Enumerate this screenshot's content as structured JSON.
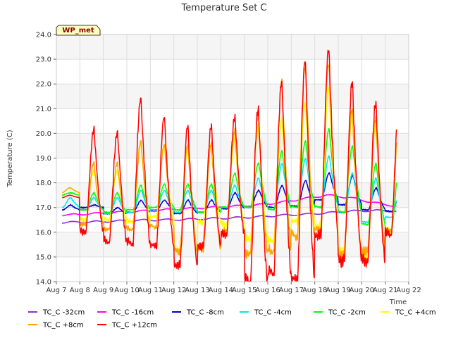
{
  "chart_data": {
    "type": "line",
    "title": "Temperature Set C",
    "xlabel": "Time",
    "ylabel": "Temperature (C)",
    "badge": "WP_met",
    "x_ticks": [
      "Aug 7",
      "Aug 8",
      "Aug 9",
      "Aug 10",
      "Aug 11",
      "Aug 12",
      "Aug 13",
      "Aug 14",
      "Aug 15",
      "Aug 16",
      "Aug 17",
      "Aug 18",
      "Aug 19",
      "Aug 20",
      "Aug 21",
      "Aug 22"
    ],
    "xlim": [
      "Aug 7",
      "Aug 22"
    ],
    "ylim": [
      14.0,
      24.0
    ],
    "y_ticks": [
      "14.0",
      "15.0",
      "16.0",
      "17.0",
      "18.0",
      "19.0",
      "20.0",
      "21.0",
      "22.0",
      "23.0",
      "24.0"
    ],
    "grid": true,
    "legend_position": "bottom",
    "series": [
      {
        "name": "TC_C -32cm",
        "color": "#8a2be2",
        "description": "slow rise from about 16.4 to about 16.9 with small daily ripple",
        "points": [
          [
            "Aug 7 12:00",
            16.4
          ],
          [
            "Aug 8 12:00",
            16.42
          ],
          [
            "Aug 9 12:00",
            16.45
          ],
          [
            "Aug 10 12:00",
            16.48
          ],
          [
            "Aug 11 12:00",
            16.5
          ],
          [
            "Aug 12 12:00",
            16.52
          ],
          [
            "Aug 13 12:00",
            16.55
          ],
          [
            "Aug 14 12:00",
            16.58
          ],
          [
            "Aug 15 12:00",
            16.62
          ],
          [
            "Aug 16 12:00",
            16.68
          ],
          [
            "Aug 17 12:00",
            16.72
          ],
          [
            "Aug 18 12:00",
            16.78
          ],
          [
            "Aug 19 12:00",
            16.85
          ],
          [
            "Aug 20 12:00",
            16.88
          ],
          [
            "Aug 21 12:00",
            16.85
          ]
        ]
      },
      {
        "name": "TC_C -16cm",
        "color": "#ff00ff",
        "points": [
          [
            "Aug 7 12:00",
            16.7
          ],
          [
            "Aug 8 12:00",
            16.75
          ],
          [
            "Aug 9 12:00",
            16.8
          ],
          [
            "Aug 10 12:00",
            16.85
          ],
          [
            "Aug 11 12:00",
            16.9
          ],
          [
            "Aug 12 12:00",
            16.95
          ],
          [
            "Aug 13 12:00",
            17.0
          ],
          [
            "Aug 14 12:00",
            17.05
          ],
          [
            "Aug 15 12:00",
            17.1
          ],
          [
            "Aug 16 12:00",
            17.2
          ],
          [
            "Aug 17 12:00",
            17.35
          ],
          [
            "Aug 18 12:00",
            17.5
          ],
          [
            "Aug 19 12:00",
            17.4
          ],
          [
            "Aug 20 12:00",
            17.2
          ],
          [
            "Aug 21 12:00",
            17.05
          ]
        ]
      },
      {
        "name": "TC_C -8cm",
        "color": "#0000cd",
        "daily_min": [
          16.9,
          17.0,
          16.75,
          16.8,
          16.9,
          16.75,
          16.8,
          16.95,
          17.0,
          17.0,
          17.05,
          17.3,
          17.1,
          16.9,
          16.85
        ],
        "daily_max": [
          17.1,
          17.1,
          17.0,
          17.3,
          17.3,
          17.3,
          17.3,
          17.6,
          17.7,
          17.9,
          18.1,
          18.4,
          18.3,
          17.8,
          17.4
        ]
      },
      {
        "name": "TC_C -4cm",
        "color": "#00e5ee",
        "daily_min": [
          17.0,
          16.9,
          16.75,
          16.8,
          16.9,
          16.8,
          16.8,
          17.0,
          17.0,
          16.9,
          17.0,
          17.0,
          16.8,
          16.4,
          16.6
        ],
        "daily_max": [
          17.4,
          17.4,
          17.4,
          17.7,
          17.7,
          17.7,
          17.7,
          17.9,
          18.2,
          18.8,
          19.0,
          19.1,
          18.4,
          18.2,
          17.6
        ]
      },
      {
        "name": "TC_C -2cm",
        "color": "#00ff00",
        "daily_min": [
          17.5,
          16.9,
          16.8,
          16.9,
          17.0,
          16.9,
          16.8,
          17.0,
          17.0,
          16.9,
          17.0,
          17.0,
          16.8,
          16.3,
          16.1
        ],
        "daily_max": [
          17.6,
          17.6,
          17.6,
          17.9,
          17.95,
          17.95,
          17.95,
          18.4,
          18.8,
          19.3,
          19.7,
          20.2,
          19.5,
          18.8,
          18.7
        ]
      },
      {
        "name": "TC_C +4cm",
        "color": "#ffff00",
        "daily_min": [
          17.6,
          16.5,
          16.5,
          16.4,
          16.6,
          15.2,
          16.4,
          16.3,
          15.7,
          15.6,
          16.4,
          16.2,
          15.2,
          15.0,
          16.0
        ],
        "daily_max": [
          17.8,
          18.5,
          18.5,
          19.6,
          19.5,
          19.4,
          19.5,
          19.8,
          20.3,
          20.6,
          21.2,
          21.8,
          20.8,
          20.4,
          20.4
        ]
      },
      {
        "name": "TC_C +8cm",
        "color": "#ffa500",
        "daily_min": [
          17.6,
          16.3,
          16.1,
          16.1,
          16.2,
          15.2,
          15.3,
          16.0,
          15.1,
          15.2,
          15.8,
          16.0,
          15.0,
          15.2,
          16.0
        ],
        "daily_max": [
          17.8,
          18.8,
          18.8,
          19.7,
          19.6,
          19.6,
          19.6,
          20.1,
          20.8,
          22.2,
          22.8,
          22.9,
          21.0,
          20.6,
          20.6
        ]
      },
      {
        "name": "TC_C +12cm",
        "color": "#ff0000",
        "daily_min": [
          17.4,
          16.0,
          15.6,
          15.5,
          15.4,
          14.6,
          15.4,
          15.9,
          14.0,
          14.3,
          14.0,
          15.8,
          14.8,
          14.8,
          15.9
        ],
        "daily_max": [
          17.5,
          20.2,
          20.1,
          21.5,
          20.7,
          20.3,
          20.3,
          20.7,
          21.1,
          22.2,
          23.0,
          23.4,
          22.1,
          21.3,
          21.2
        ]
      }
    ]
  },
  "legend": [
    {
      "label": "TC_C -32cm",
      "color": "#8a2be2"
    },
    {
      "label": "TC_C -16cm",
      "color": "#ff00ff"
    },
    {
      "label": "TC_C -8cm",
      "color": "#0000cd"
    },
    {
      "label": "TC_C -4cm",
      "color": "#00e5ee"
    },
    {
      "label": "TC_C -2cm",
      "color": "#00ff00"
    },
    {
      "label": "TC_C +4cm",
      "color": "#ffff00"
    },
    {
      "label": "TC_C +8cm",
      "color": "#ffa500"
    },
    {
      "label": "TC_C +12cm",
      "color": "#ff0000"
    }
  ],
  "colors": {
    "plot_background": "#ebebeb",
    "band_light": "#f5f5f5",
    "grid": "#ffffff",
    "badge_fill": "#ffffc0",
    "badge_text": "#8b0000"
  }
}
